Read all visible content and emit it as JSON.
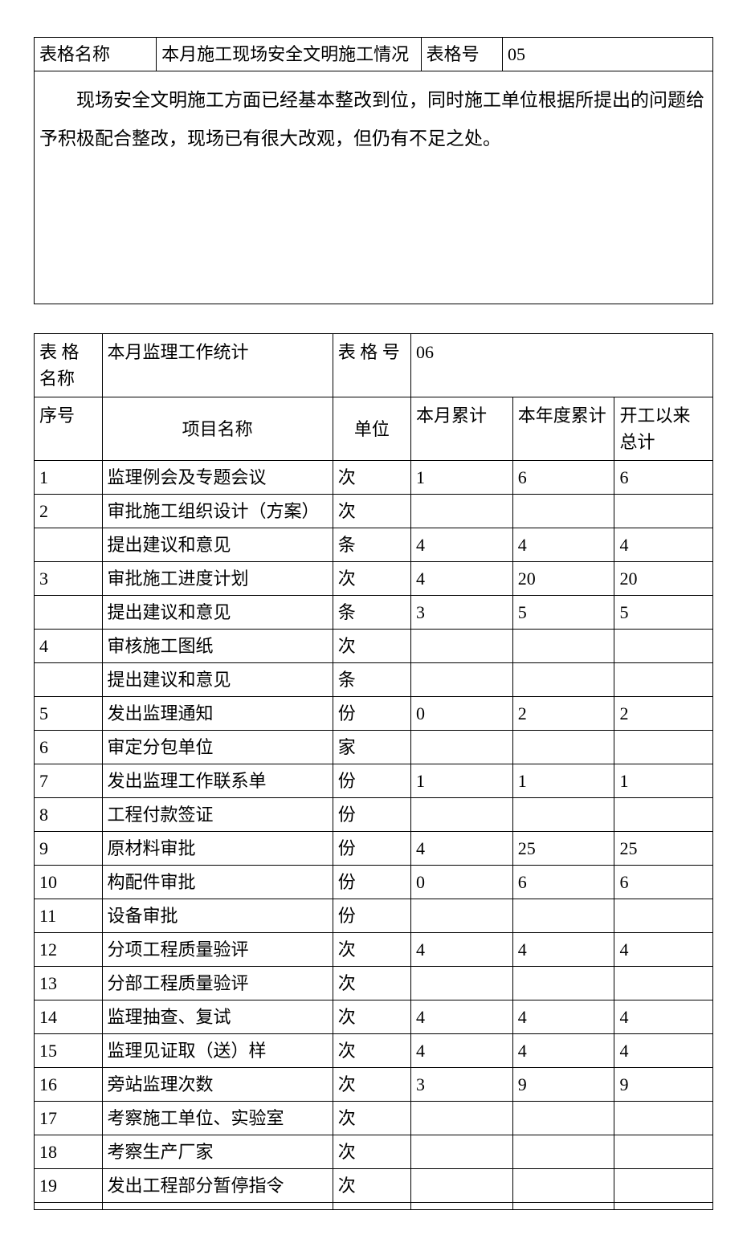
{
  "table1": {
    "label_name": "表格名称",
    "name_value": "本月施工现场安全文明施工情况",
    "label_number": "表格号",
    "number_value": "05",
    "body": "现场安全文明施工方面已经基本整改到位，同时施工单位根据所提出的问题给予积极配合整改，现场已有很大改观，但仍有不足之处。"
  },
  "table2": {
    "label_name": "表 格 名称",
    "name_value": "本月监理工作统计",
    "label_number": "表 格 号",
    "number_value": "06",
    "headers": {
      "seq": "序号",
      "item": "项目名称",
      "unit": "单位",
      "month": "本月累计",
      "year": "本年度累计",
      "total": "开工以来总计"
    },
    "rows": [
      {
        "seq": "1",
        "item": "监理例会及专题会议",
        "unit": "次",
        "month": "1",
        "year": "6",
        "total": "6"
      },
      {
        "seq": "2",
        "item": "审批施工组织设计（方案）",
        "unit": "次",
        "month": "",
        "year": "",
        "total": ""
      },
      {
        "seq": "",
        "item": "提出建议和意见",
        "unit": "条",
        "month": "4",
        "year": "4",
        "total": "4"
      },
      {
        "seq": "3",
        "item": "审批施工进度计划",
        "unit": "次",
        "month": "4",
        "year": "20",
        "total": "20"
      },
      {
        "seq": "",
        "item": "提出建议和意见",
        "unit": "条",
        "month": "3",
        "year": "5",
        "total": "5"
      },
      {
        "seq": "4",
        "item": "审核施工图纸",
        "unit": "次",
        "month": "",
        "year": "",
        "total": ""
      },
      {
        "seq": "",
        "item": "提出建议和意见",
        "unit": "条",
        "month": "",
        "year": "",
        "total": ""
      },
      {
        "seq": "5",
        "item": "发出监理通知",
        "unit": "份",
        "month": "0",
        "year": "2",
        "total": "2"
      },
      {
        "seq": "6",
        "item": "审定分包单位",
        "unit": "家",
        "month": "",
        "year": "",
        "total": ""
      },
      {
        "seq": "7",
        "item": "发出监理工作联系单",
        "unit": "份",
        "month": "1",
        "year": "1",
        "total": "1"
      },
      {
        "seq": "8",
        "item": "工程付款签证",
        "unit": "份",
        "month": "",
        "year": "",
        "total": ""
      },
      {
        "seq": "9",
        "item": "原材料审批",
        "unit": "份",
        "month": "4",
        "year": "25",
        "total": "25"
      },
      {
        "seq": "10",
        "item": "构配件审批",
        "unit": "份",
        "month": "0",
        "year": "6",
        "total": "6"
      },
      {
        "seq": "11",
        "item": "设备审批",
        "unit": "份",
        "month": "",
        "year": "",
        "total": ""
      },
      {
        "seq": "12",
        "item": "分项工程质量验评",
        "unit": "次",
        "month": "4",
        "year": "4",
        "total": "4"
      },
      {
        "seq": "13",
        "item": "分部工程质量验评",
        "unit": "次",
        "month": "",
        "year": "",
        "total": ""
      },
      {
        "seq": "14",
        "item": "监理抽查、复试",
        "unit": "次",
        "month": "4",
        "year": "4",
        "total": "4"
      },
      {
        "seq": "15",
        "item": "监理见证取（送）样",
        "unit": "次",
        "month": "4",
        "year": "4",
        "total": "4"
      },
      {
        "seq": "16",
        "item": "旁站监理次数",
        "unit": "次",
        "month": "   3",
        "year": "9",
        "total": "9"
      },
      {
        "seq": "17",
        "item": "考察施工单位、实验室",
        "unit": "次",
        "month": "",
        "year": "",
        "total": ""
      },
      {
        "seq": "18",
        "item": "考察生产厂家",
        "unit": "次",
        "month": "",
        "year": "",
        "total": ""
      },
      {
        "seq": "19",
        "item": "发出工程部分暂停指令",
        "unit": "次",
        "month": "",
        "year": "",
        "total": ""
      },
      {
        "seq": "",
        "item": "",
        "unit": "",
        "month": "",
        "year": "",
        "total": ""
      }
    ]
  }
}
